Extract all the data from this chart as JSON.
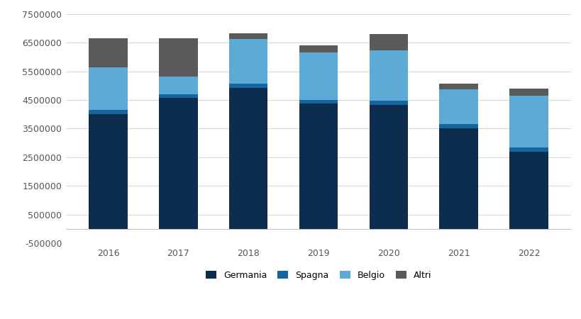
{
  "years": [
    2016,
    2017,
    2018,
    2019,
    2020,
    2021,
    2022
  ],
  "Germania": [
    4000000,
    4580000,
    4930000,
    4380000,
    4330000,
    3520000,
    2700000
  ],
  "Spagna": [
    150000,
    130000,
    150000,
    130000,
    150000,
    150000,
    150000
  ],
  "Belgio": [
    1500000,
    600000,
    1550000,
    1650000,
    1750000,
    1200000,
    1800000
  ],
  "Altri": [
    1000000,
    1350000,
    200000,
    250000,
    570000,
    200000,
    250000
  ],
  "color_Germania": "#0d2d4e",
  "color_Spagna": "#1565a0",
  "color_Belgio": "#5babd6",
  "color_Altri": "#5a5a5a",
  "ylim_min": -500000,
  "ylim_max": 7500000,
  "yticks": [
    -500000,
    500000,
    1500000,
    2500000,
    3500000,
    4500000,
    5500000,
    6500000,
    7500000
  ],
  "background_color": "#ffffff",
  "grid_color": "#d0d0d0",
  "bar_width": 0.55,
  "figsize": [
    8.2,
    4.5
  ],
  "dpi": 100
}
